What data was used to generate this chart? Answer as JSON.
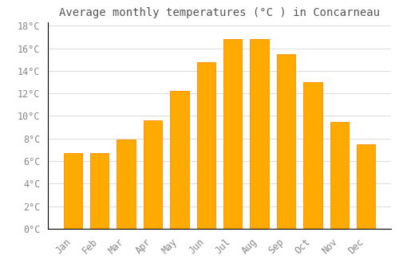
{
  "title": "Average monthly temperatures (°C ) in Concarneau",
  "months": [
    "Jan",
    "Feb",
    "Mar",
    "Apr",
    "May",
    "Jun",
    "Jul",
    "Aug",
    "Sep",
    "Oct",
    "Nov",
    "Dec"
  ],
  "values": [
    6.7,
    6.7,
    7.9,
    9.6,
    12.2,
    14.8,
    16.8,
    16.8,
    15.5,
    13.0,
    9.5,
    7.5
  ],
  "bar_color": "#FFAA00",
  "bar_edge_color": "#FF8C00",
  "background_color": "#FFFFFF",
  "grid_color": "#DDDDDD",
  "tick_label_color": "#888888",
  "title_color": "#555555",
  "ylim_max": 18,
  "ytick_step": 2,
  "title_fontsize": 10,
  "tick_fontsize": 8.5,
  "bar_width": 0.7
}
